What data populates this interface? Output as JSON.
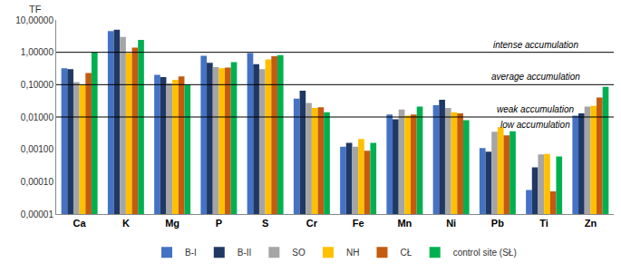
{
  "chart_data": {
    "type": "bar",
    "y_label": "TF",
    "log": "y",
    "grid": false,
    "legend": "bottom",
    "categories": [
      "Ca",
      "K",
      "Mg",
      "P",
      "S",
      "Cr",
      "Fe",
      "Mn",
      "Ni",
      "Pb",
      "Ti",
      "Zn"
    ],
    "series": [
      {
        "name": "B-I",
        "color": "#4472c4",
        "values": [
          0.32,
          4.5,
          0.2,
          0.78,
          0.95,
          0.037,
          0.0012,
          0.012,
          0.023,
          0.0011,
          5.5e-05,
          0.011
        ]
      },
      {
        "name": "B-II",
        "color": "#203864",
        "values": [
          0.3,
          5.0,
          0.17,
          0.47,
          0.43,
          0.065,
          0.0016,
          0.0085,
          0.034,
          0.00085,
          0.00028,
          0.013
        ]
      },
      {
        "name": "SO",
        "color": "#a5a5a5",
        "values": [
          0.12,
          3.0,
          0.11,
          0.35,
          0.3,
          0.027,
          0.0012,
          0.017,
          0.019,
          0.0035,
          0.0007,
          0.021
        ]
      },
      {
        "name": "NH",
        "color": "#ffc000",
        "values": [
          0.1,
          0.95,
          0.14,
          0.32,
          0.6,
          0.019,
          0.0021,
          0.011,
          0.014,
          0.0048,
          0.00072,
          0.022
        ]
      },
      {
        "name": "CŁ",
        "color": "#c55a11",
        "values": [
          0.23,
          1.4,
          0.18,
          0.34,
          0.75,
          0.02,
          0.0009,
          0.012,
          0.013,
          0.0027,
          5e-05,
          0.04
        ]
      },
      {
        "name": "control site (SŁ)",
        "color": "#00b050",
        "values": [
          1.0,
          2.4,
          0.1,
          0.5,
          0.82,
          0.014,
          0.0016,
          0.021,
          0.008,
          0.0036,
          0.0006,
          0.085
        ]
      }
    ],
    "ylim": [
      1e-05,
      10
    ],
    "yticks": [
      {
        "value": 10,
        "label": "10,00000"
      },
      {
        "value": 1,
        "label": "1,00000"
      },
      {
        "value": 0.1,
        "label": "0,10000"
      },
      {
        "value": 0.01,
        "label": "0,01000"
      },
      {
        "value": 0.001,
        "label": "0,00100"
      },
      {
        "value": 0.0001,
        "label": "0,00010"
      },
      {
        "value": 1e-05,
        "label": "0,00001"
      }
    ],
    "annotations": [
      {
        "text": "intense accumulation",
        "y": 1
      },
      {
        "text": "average accumulation",
        "y": 0.1
      },
      {
        "text": "weak accumulation",
        "y": 0.01
      },
      {
        "text": "low accumulation",
        "y": 0.01
      }
    ]
  }
}
